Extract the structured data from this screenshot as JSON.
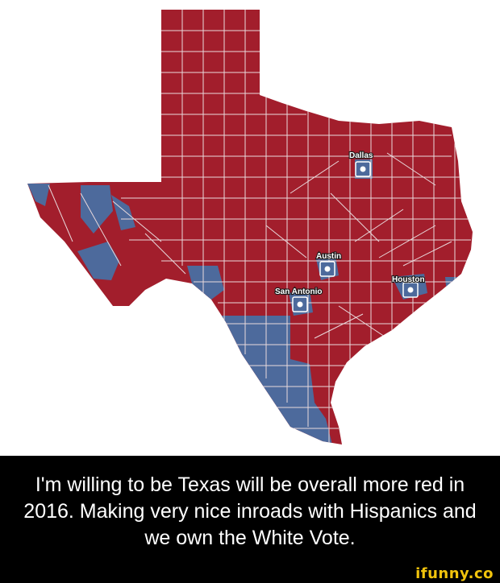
{
  "map": {
    "colors": {
      "republican": "#a21e2c",
      "democrat": "#4d6a9c",
      "border": "#e9d9dc",
      "marker_fill": "#ffffff"
    },
    "cities": [
      {
        "name": "Dallas"
      },
      {
        "name": "Austin"
      },
      {
        "name": "San Antonio"
      },
      {
        "name": "Houston"
      }
    ]
  },
  "caption": {
    "text": "I'm willing to be Texas will be overall more red in 2016. Making very nice inroads with Hispanics and we own the White Vote."
  },
  "watermark": {
    "text": "ifunny.co"
  }
}
